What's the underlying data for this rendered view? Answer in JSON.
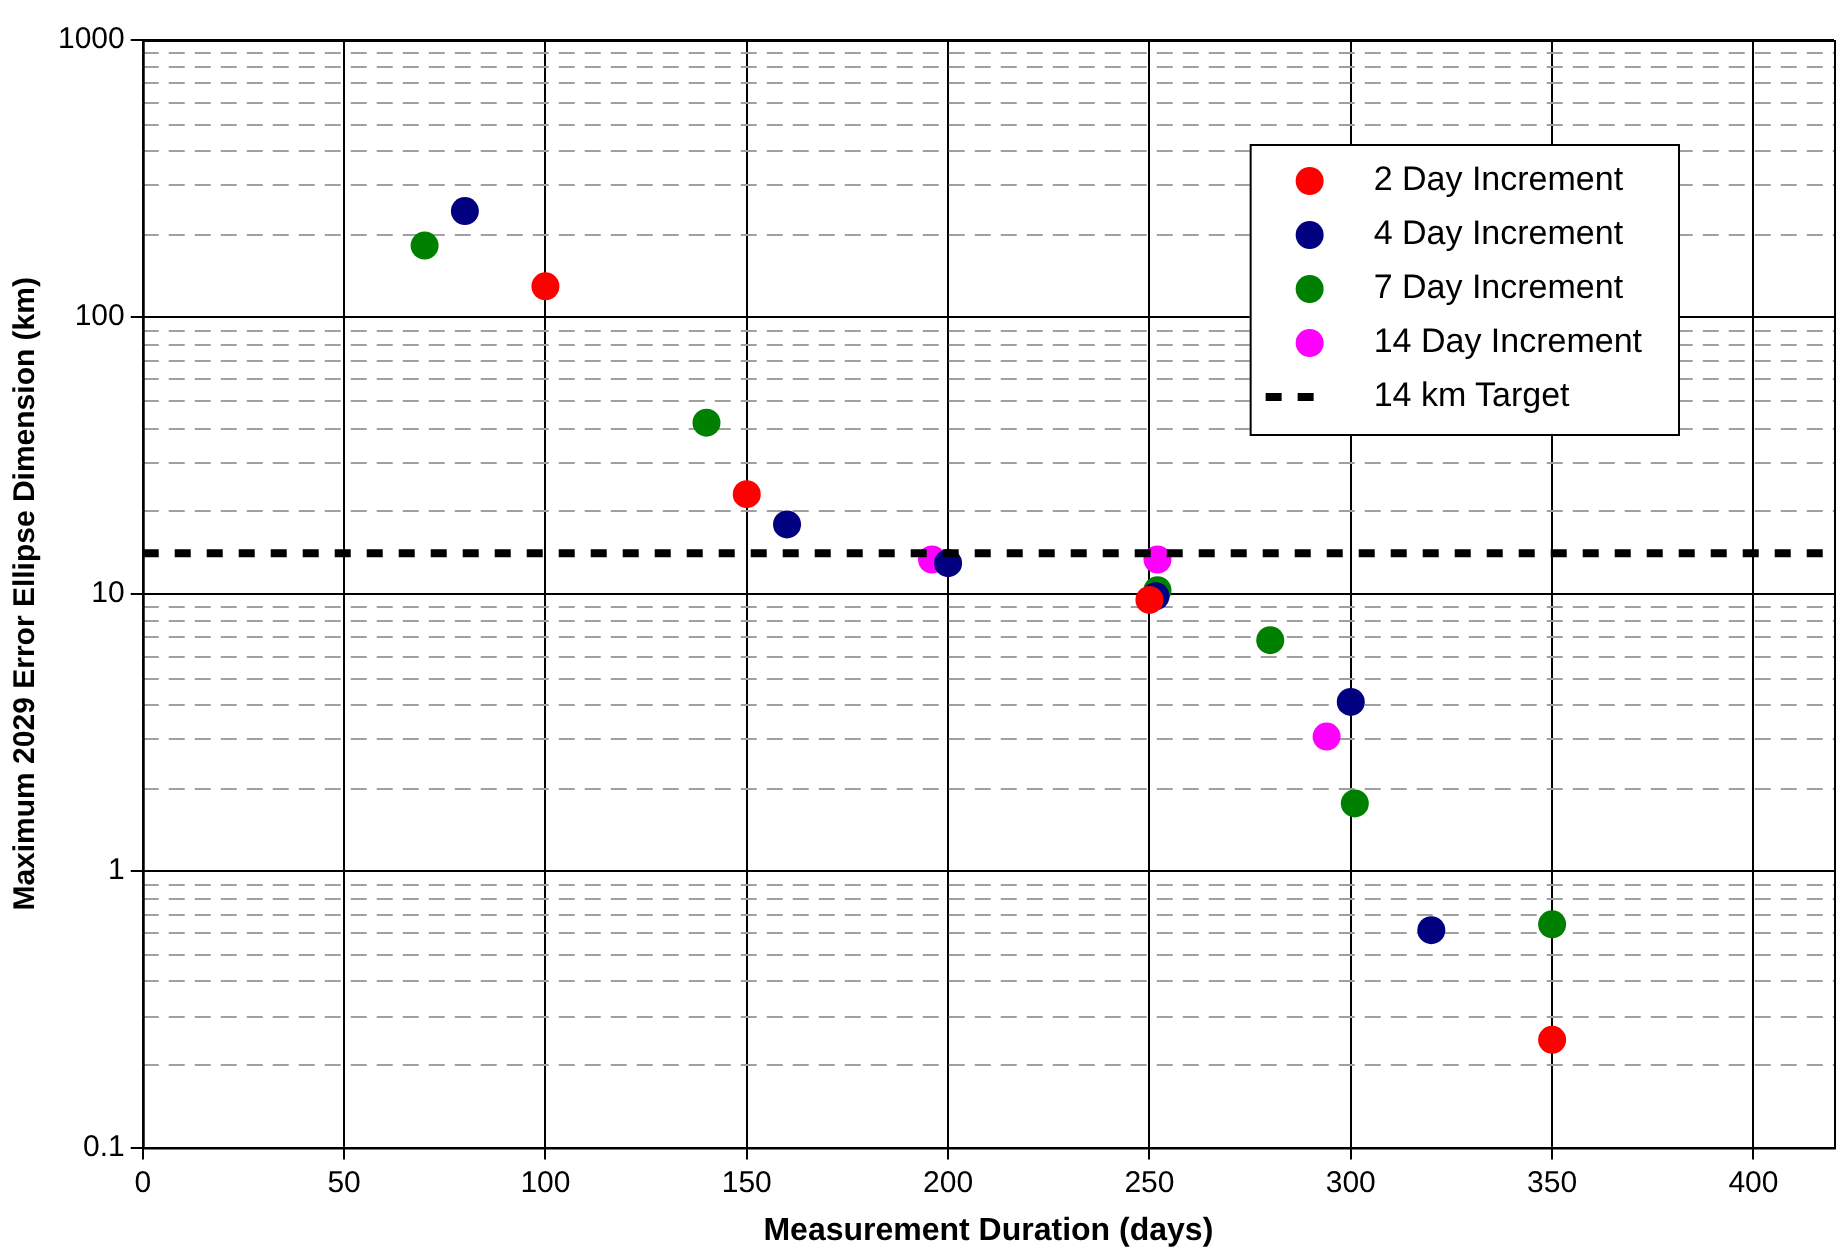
{
  "chart_data": {
    "type": "scatter",
    "xlabel": "Measurement Duration (days)",
    "ylabel": "Maximum 2029 Error Ellipse Dimension (km)",
    "log": "y",
    "xlim": [
      0,
      420
    ],
    "xticks": [
      0,
      50,
      100,
      150,
      200,
      250,
      300,
      350,
      400
    ],
    "ylim": [
      0.1,
      1000
    ],
    "yticks": [
      0.1,
      1,
      10,
      100,
      1000
    ],
    "grid": true,
    "legend": "top right",
    "marker": "circle",
    "series": [
      {
        "name": "2 Day Increment",
        "color": "#ff0000",
        "x": [
          100,
          150,
          250,
          350
        ],
        "values": [
          129,
          22.9,
          9.5,
          0.245
        ]
      },
      {
        "name": "4 Day Increment",
        "color": "#000080",
        "x": [
          80,
          160,
          200,
          251.5,
          300,
          320
        ],
        "values": [
          241,
          17.8,
          12.9,
          9.8,
          4.07,
          0.61
        ]
      },
      {
        "name": "7 Day Increment",
        "color": "#008000",
        "x": [
          70,
          140,
          252,
          280,
          301,
          350
        ],
        "values": [
          181,
          41.5,
          10.3,
          6.8,
          1.75,
          0.64
        ]
      },
      {
        "name": "14 Day Increment",
        "color": "#ff00ff",
        "x": [
          196,
          252,
          294
        ],
        "values": [
          13.3,
          13.3,
          3.05
        ]
      }
    ],
    "ref_lines": [
      {
        "axis": "y",
        "value": 14,
        "label": "14 km Target",
        "color": "#000000",
        "line_style": "dashed"
      }
    ]
  }
}
